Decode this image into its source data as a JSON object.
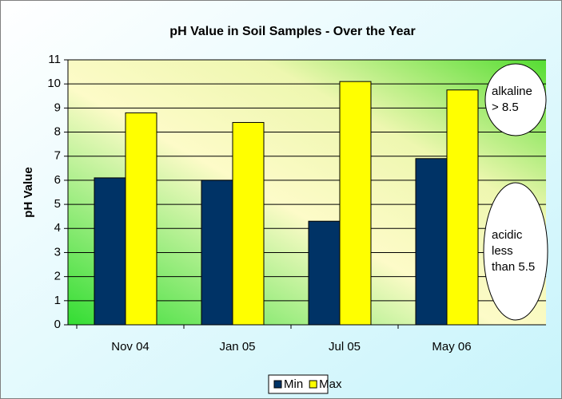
{
  "chart_data": {
    "type": "bar",
    "title": "pH Value in Soil Samples - Over the Year",
    "y_label": "pH Value",
    "categories": [
      "Nov 04",
      "Jan 05",
      "Jul 05",
      "May 06"
    ],
    "series": [
      {
        "name": "Min",
        "color": "#003366",
        "values": [
          6.1,
          6.0,
          4.3,
          6.9
        ]
      },
      {
        "name": "Max",
        "color": "#ffff00",
        "values": [
          8.8,
          8.4,
          10.1,
          9.75
        ]
      }
    ],
    "ylim": [
      0,
      11
    ],
    "yticks": [
      0,
      1,
      2,
      3,
      4,
      5,
      6,
      7,
      8,
      9,
      10,
      11
    ],
    "grid": true,
    "legend": "bottom",
    "annotations": [
      {
        "lines": [
          "alkaline",
          "> 8.5"
        ]
      },
      {
        "lines": [
          "acidic",
          "less",
          "than 5.5"
        ]
      }
    ]
  }
}
